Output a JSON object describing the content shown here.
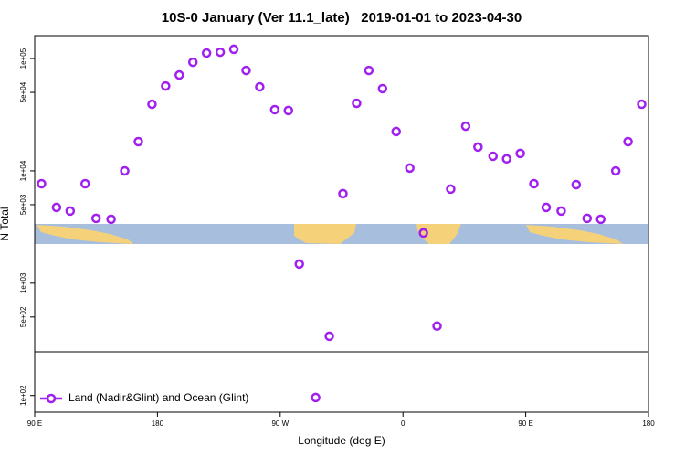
{
  "chart_data": {
    "type": "scatter",
    "title": "10S-0 January (Ver 11.1_late)   2019-01-01 to 2023-04-30",
    "x_label": "Longitude (deg E)",
    "y_label": "N Total",
    "xlim": [
      90,
      540
    ],
    "xticks": [
      {
        "value": 90,
        "label": "90 E"
      },
      180,
      {
        "value": 270,
        "label": "90 W"
      },
      {
        "value": 360,
        "label": "0"
      },
      {
        "value": 450,
        "label": "90 E"
      },
      {
        "value": 540,
        "label": "180"
      }
    ],
    "ylim": [
      71,
      160000
    ],
    "log_y": true,
    "yticks": [
      {
        "value": 100,
        "label": "1e+02"
      },
      {
        "value": 500,
        "label": "5e+02"
      },
      {
        "value": 1000,
        "label": "1e+03"
      },
      {
        "value": 5000,
        "label": "5e+03"
      },
      {
        "value": 10000,
        "label": "1e+04"
      },
      {
        "value": 50000,
        "label": "5e+04"
      },
      {
        "value": 100000,
        "label": "1e+05"
      }
    ],
    "legend_position": "bottom-left",
    "series": [
      {
        "name": "Land (Nadir&Glint) and Ocean (Glint)",
        "color": "#a020f0",
        "x": [
          95,
          106,
          116,
          127,
          135,
          146,
          156,
          166,
          176,
          186,
          196,
          206,
          216,
          226,
          236,
          245,
          255,
          266,
          276,
          284,
          296,
          306,
          316,
          326,
          335,
          345,
          355,
          365,
          375,
          385,
          395,
          406,
          415,
          426,
          436,
          446,
          456,
          465,
          476,
          487,
          495,
          505,
          516,
          525,
          535
        ],
        "values": [
          7690,
          4730,
          4390,
          7690,
          3780,
          3710,
          10000,
          18200,
          39200,
          57000,
          71400,
          92800,
          112000,
          114000,
          121000,
          78400,
          56000,
          35100,
          34500,
          1480,
          96,
          337,
          6270,
          40000,
          78400,
          54000,
          22400,
          10600,
          2800,
          415,
          6880,
          25000,
          16300,
          13500,
          12800,
          14300,
          7690,
          4730,
          4390,
          7540,
          3780,
          3710,
          10000,
          18200,
          39200
        ]
      }
    ]
  }
}
